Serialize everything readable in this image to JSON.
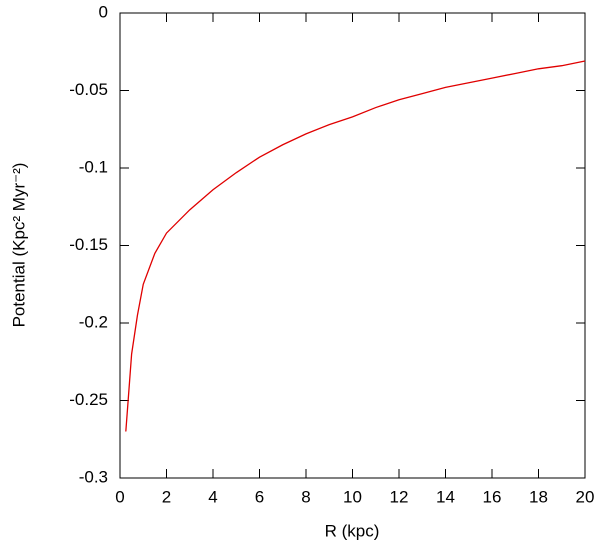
{
  "chart_data": {
    "type": "line",
    "x_label": "R (kpc)",
    "y_label": "Potential (Kpc² Myr⁻²)",
    "x": [
      0.25,
      0.5,
      0.75,
      1,
      1.5,
      2,
      3,
      4,
      5,
      6,
      7,
      8,
      9,
      10,
      11,
      12,
      13,
      14,
      15,
      16,
      17,
      18,
      19,
      20
    ],
    "series": [
      {
        "color": "#e00000",
        "values": [
          -0.27,
          -0.22,
          -0.195,
          -0.175,
          -0.155,
          -0.142,
          -0.127,
          -0.114,
          -0.103,
          -0.093,
          -0.085,
          -0.078,
          -0.072,
          -0.067,
          -0.061,
          -0.056,
          -0.052,
          -0.048,
          -0.045,
          -0.042,
          -0.039,
          -0.036,
          -0.034,
          -0.031
        ]
      }
    ],
    "xlim": [
      0,
      20
    ],
    "xticks": [
      0,
      2,
      4,
      6,
      8,
      10,
      12,
      14,
      16,
      18,
      20
    ],
    "ylim": [
      -0.3,
      0
    ],
    "yticks": [
      0,
      -0.05,
      -0.1,
      -0.15,
      -0.2,
      -0.25,
      -0.3
    ]
  }
}
